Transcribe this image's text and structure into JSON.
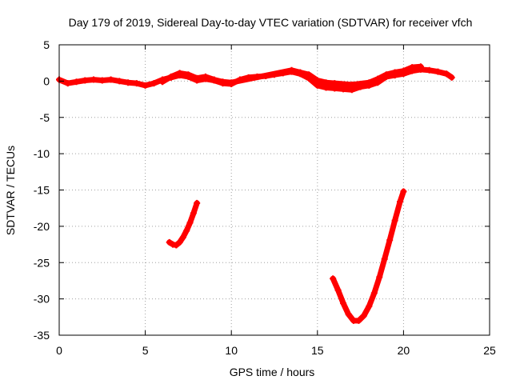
{
  "chart_data": {
    "type": "scatter",
    "title": "Day 179 of 2019, Sidereal Day-to-day VTEC variation (SDTVAR) for receiver vfch",
    "xlabel": "GPS time / hours",
    "ylabel": "SDTVAR / TECUs",
    "xlim": [
      0,
      25
    ],
    "ylim": [
      -35,
      5
    ],
    "x_ticks": [
      0,
      5,
      10,
      15,
      20,
      25
    ],
    "y_ticks": [
      5,
      0,
      -5,
      -10,
      -15,
      -20,
      -25,
      -30,
      -35
    ],
    "grid": true,
    "series_color": "#ff0000",
    "series": [
      {
        "name": "main",
        "x": [
          0.0,
          0.5,
          1.0,
          1.5,
          2.0,
          2.5,
          3.0,
          3.5,
          4.0,
          4.5,
          5.0,
          5.5,
          6.0,
          6.5,
          7.0,
          7.5,
          8.0,
          8.5,
          9.0,
          9.5,
          10.0,
          10.5,
          11.0,
          11.5,
          12.0,
          12.5,
          13.0,
          13.5,
          14.0,
          14.5,
          15.0,
          15.5,
          16.0,
          16.5,
          17.0,
          17.5,
          18.0,
          18.5,
          19.0,
          19.5,
          20.0,
          20.5,
          21.0,
          21.5,
          22.0,
          22.5,
          22.8
        ],
        "values": [
          0.2,
          -0.3,
          -0.1,
          0.1,
          0.2,
          0.1,
          0.2,
          0.0,
          -0.2,
          -0.3,
          -0.6,
          -0.3,
          0.2,
          0.5,
          0.8,
          0.6,
          0.1,
          0.3,
          0.1,
          -0.3,
          -0.4,
          0.2,
          0.5,
          0.6,
          0.7,
          0.9,
          1.1,
          1.3,
          1.0,
          0.4,
          -0.6,
          -0.9,
          -1.0,
          -1.1,
          -1.2,
          -0.8,
          -0.6,
          -0.2,
          0.6,
          0.8,
          1.0,
          1.4,
          1.6,
          1.5,
          1.3,
          1.0,
          0.5
        ]
      },
      {
        "name": "main-upper",
        "x": [
          6.0,
          6.5,
          7.0,
          7.5,
          8.0,
          8.5,
          9.0,
          9.5,
          10.0,
          13.5,
          14.0,
          14.5,
          15.0,
          15.5,
          16.0,
          17.0,
          18.0,
          18.5,
          19.0,
          19.5,
          20.0,
          20.5,
          21.0
        ],
        "values": [
          -0.1,
          0.6,
          1.1,
          0.9,
          0.4,
          0.6,
          0.2,
          -0.1,
          -0.2,
          1.5,
          1.2,
          0.9,
          0.1,
          -0.2,
          -0.3,
          -0.5,
          -0.2,
          0.3,
          0.9,
          1.2,
          1.4,
          1.9,
          2.0
        ]
      },
      {
        "name": "arc-1",
        "x": [
          6.4,
          6.6,
          6.8,
          7.0,
          7.2,
          7.4,
          7.6,
          7.8,
          8.0
        ],
        "values": [
          -22.2,
          -22.5,
          -22.6,
          -22.2,
          -21.5,
          -20.6,
          -19.5,
          -18.2,
          -16.8
        ]
      },
      {
        "name": "arc-2",
        "x": [
          15.9,
          16.2,
          16.5,
          16.8,
          17.1,
          17.4,
          17.7,
          18.0,
          18.3,
          18.6,
          18.9,
          19.2,
          19.5,
          19.8,
          20.0
        ],
        "values": [
          -27.2,
          -28.8,
          -30.6,
          -32.1,
          -33.0,
          -33.0,
          -32.3,
          -31.0,
          -29.2,
          -27.0,
          -24.5,
          -21.9,
          -19.2,
          -16.6,
          -15.2
        ]
      }
    ]
  }
}
